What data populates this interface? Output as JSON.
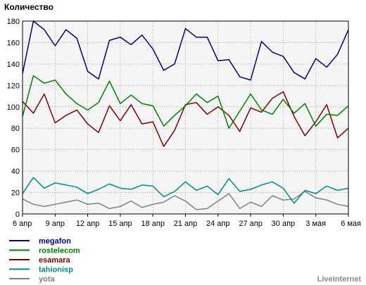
{
  "chart_data": {
    "type": "line",
    "title": "Количество",
    "brand": "LiveInternet",
    "xlabel": "",
    "ylabel": "",
    "ylim": [
      0,
      180
    ],
    "yticks": [
      0,
      20,
      40,
      60,
      80,
      100,
      120,
      140,
      160,
      180
    ],
    "grid": true,
    "legend_position": "bottom-left",
    "x_tick_labels": [
      "6 апр",
      "9 апр",
      "12 апр",
      "15 апр",
      "18 апр",
      "21 апр",
      "24 апр",
      "27 апр",
      "30 апр",
      "3 мая",
      "6 мая"
    ],
    "series": [
      {
        "name": "megafon",
        "color": "#00007f",
        "values": [
          131,
          180,
          172,
          157,
          172,
          164,
          133,
          126,
          162,
          165,
          158,
          167,
          154,
          134,
          140,
          173,
          165,
          165,
          143,
          144,
          128,
          125,
          161,
          151,
          147,
          132,
          126,
          145,
          137,
          149,
          172
        ]
      },
      {
        "name": "rostelecom",
        "color": "#008000",
        "values": [
          91,
          129,
          122,
          125,
          112,
          103,
          97,
          104,
          124,
          103,
          111,
          103,
          101,
          82,
          92,
          101,
          112,
          104,
          110,
          80,
          96,
          112,
          97,
          93,
          107,
          94,
          103,
          82,
          93,
          92,
          101
        ]
      },
      {
        "name": "esamara",
        "color": "#800000",
        "values": [
          105,
          94,
          112,
          85,
          92,
          97,
          84,
          76,
          101,
          87,
          102,
          84,
          86,
          63,
          78,
          102,
          104,
          93,
          100,
          92,
          77,
          99,
          95,
          108,
          114,
          91,
          73,
          86,
          102,
          71,
          80
        ]
      },
      {
        "name": "tahionisp",
        "color": "#008b8b",
        "values": [
          19,
          34,
          24,
          29,
          27,
          25,
          19,
          23,
          28,
          24,
          23,
          27,
          26,
          16,
          21,
          30,
          22,
          26,
          18,
          33,
          21,
          23,
          27,
          30,
          24,
          10,
          22,
          19,
          26,
          22,
          24
        ]
      },
      {
        "name": "yota",
        "color": "#808080",
        "values": [
          14,
          9,
          7,
          9,
          11,
          13,
          9,
          10,
          5,
          7,
          12,
          6,
          9,
          11,
          17,
          12,
          4,
          5,
          12,
          19,
          5,
          11,
          7,
          17,
          13,
          14,
          21,
          15,
          13,
          9,
          7
        ]
      }
    ]
  }
}
